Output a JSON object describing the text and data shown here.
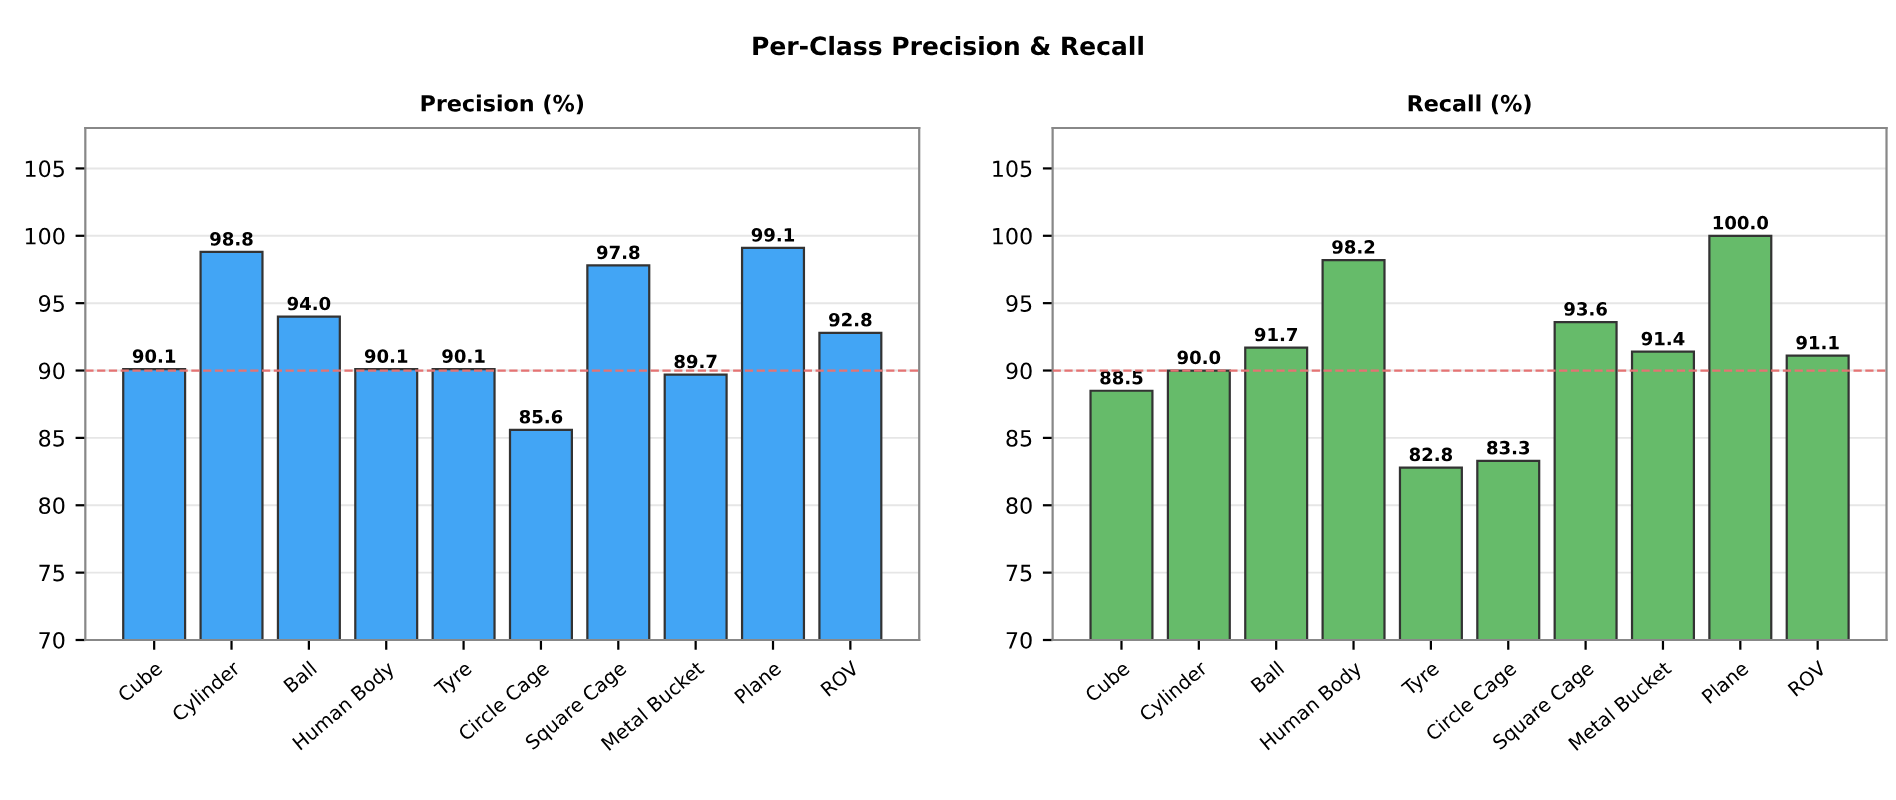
{
  "chart_data": [
    {
      "type": "bar",
      "title": "Precision (%)",
      "annotations": [
        "Per-Class Precision & Recall"
      ],
      "categories": [
        "Cube",
        "Cylinder",
        "Ball",
        "Human Body",
        "Tyre",
        "Circle Cage",
        "Square Cage",
        "Metal Bucket",
        "Plane",
        "ROV"
      ],
      "series": [
        {
          "color": "#42a5f5",
          "values": [
            90.1,
            98.8,
            94.0,
            90.1,
            90.1,
            85.6,
            97.8,
            89.7,
            99.1,
            92.8
          ],
          "value_labels": [
            "90.1",
            "98.8",
            "94.0",
            "90.1",
            "90.1",
            "85.6",
            "97.8",
            "89.7",
            "99.1",
            "92.8"
          ]
        }
      ],
      "ylim": [
        70,
        108
      ],
      "yticks": [
        70,
        75,
        80,
        85,
        90,
        95,
        100,
        105
      ],
      "grid": "y",
      "ref_lines": [
        {
          "axis": "y",
          "value": 90,
          "color": "#e57373",
          "line_style": "dashed"
        }
      ]
    },
    {
      "type": "bar",
      "title": "Recall (%)",
      "categories": [
        "Cube",
        "Cylinder",
        "Ball",
        "Human Body",
        "Tyre",
        "Circle Cage",
        "Square Cage",
        "Metal Bucket",
        "Plane",
        "ROV"
      ],
      "series": [
        {
          "color": "#66bb6a",
          "values": [
            88.5,
            90.0,
            91.7,
            98.2,
            82.8,
            83.3,
            93.6,
            91.4,
            100.0,
            91.1
          ],
          "value_labels": [
            "88.5",
            "90.0",
            "91.7",
            "98.2",
            "82.8",
            "83.3",
            "93.6",
            "91.4",
            "100.0",
            "91.1"
          ]
        }
      ],
      "ylim": [
        70,
        108
      ],
      "yticks": [
        70,
        75,
        80,
        85,
        90,
        95,
        100,
        105
      ],
      "grid": "y",
      "ref_lines": [
        {
          "axis": "y",
          "value": 90,
          "color": "#e57373",
          "line_style": "dashed"
        }
      ]
    }
  ]
}
